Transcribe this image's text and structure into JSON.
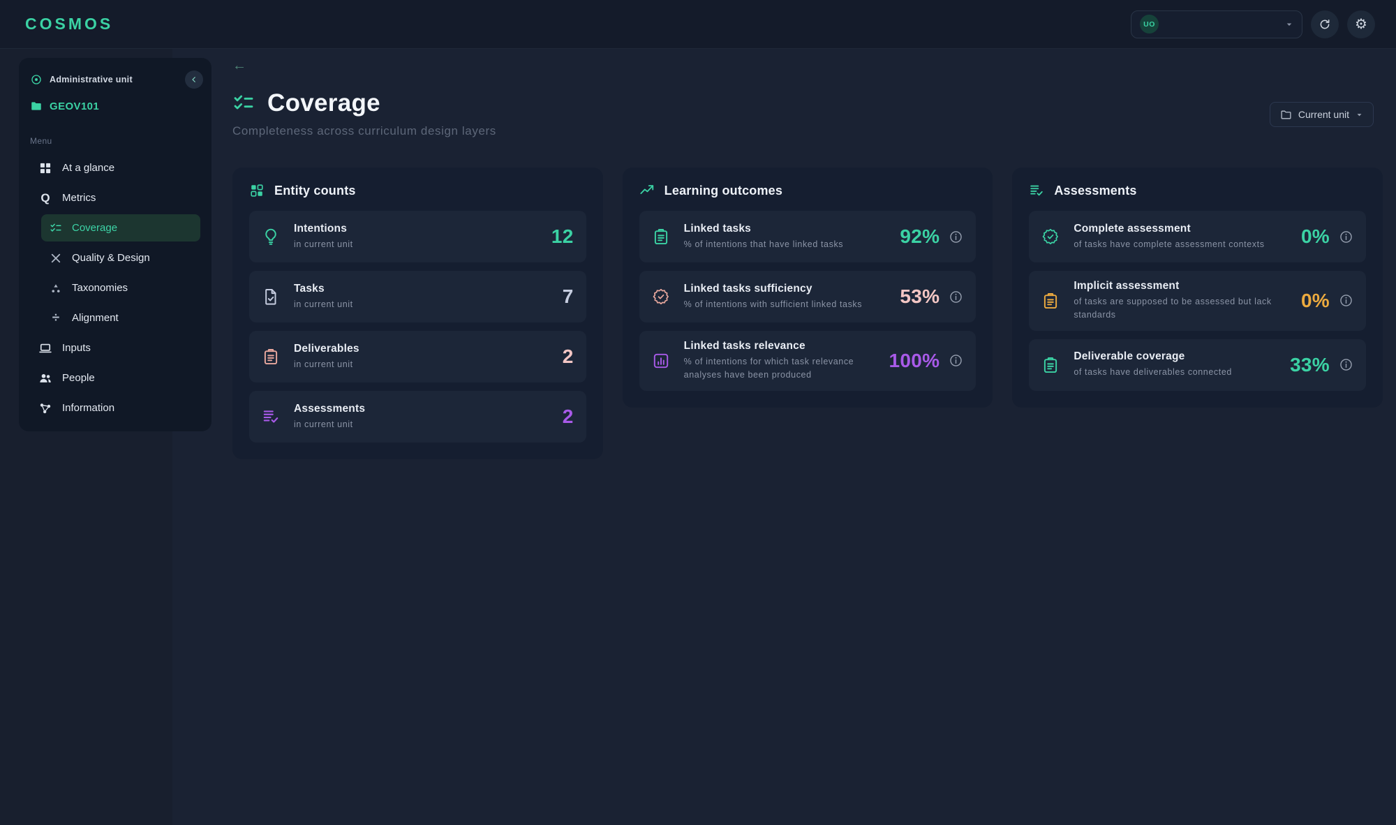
{
  "app": {
    "logo": "COSMOS"
  },
  "topbar": {
    "unit_badge": "UO",
    "actions": [
      "refresh",
      "settings"
    ]
  },
  "colors": {
    "teal": "#3bd2a4",
    "purple": "#a85ae8",
    "rose": "#f3c6c4",
    "salmon": "#e9a89e",
    "orange": "#ecaa3f",
    "slate": "#c6cde0"
  },
  "sidebar": {
    "section_label": "Administrative unit",
    "unit_name": "GEOV101",
    "menu_label": "Menu",
    "items": [
      {
        "label": "At a glance",
        "icon": "grid",
        "sub": false,
        "active": false
      },
      {
        "label": "Metrics",
        "icon": "q",
        "sub": false,
        "active": false
      },
      {
        "label": "Coverage",
        "icon": "checklist",
        "sub": true,
        "active": true
      },
      {
        "label": "Quality & Design",
        "icon": "tools-x",
        "sub": true,
        "active": false
      },
      {
        "label": "Taxonomies",
        "icon": "hierarchy",
        "sub": true,
        "active": false
      },
      {
        "label": "Alignment",
        "icon": "divide",
        "sub": true,
        "active": false
      },
      {
        "label": "Inputs",
        "icon": "laptop",
        "sub": false,
        "active": false
      },
      {
        "label": "People",
        "icon": "people",
        "sub": false,
        "active": false
      },
      {
        "label": "Information",
        "icon": "network",
        "sub": false,
        "active": false
      }
    ]
  },
  "header": {
    "title": "Coverage",
    "subtitle": "Completeness across curriculum design layers",
    "unit_filter_label": "Current unit"
  },
  "cards": [
    {
      "title": "Entity counts",
      "icon": "grid-squares",
      "rows": [
        {
          "title": "Intentions",
          "subtitle": "in current unit",
          "value": "12",
          "color": "teal",
          "icon": "lightbulb",
          "info": false
        },
        {
          "title": "Tasks",
          "subtitle": "in current unit",
          "value": "7",
          "color": "slate",
          "icon": "file-check",
          "info": false
        },
        {
          "title": "Deliverables",
          "subtitle": "in current unit",
          "value": "2",
          "color": "rose",
          "icon": "clipboard",
          "info": false
        },
        {
          "title": "Assessments",
          "subtitle": "in current unit",
          "value": "2",
          "color": "purple",
          "icon": "list-check",
          "info": false
        }
      ]
    },
    {
      "title": "Learning outcomes",
      "icon": "trend-up",
      "rows": [
        {
          "title": "Linked tasks",
          "subtitle": "% of intentions that have linked tasks",
          "value": "92%",
          "color": "teal",
          "icon": "clipboard",
          "info": true
        },
        {
          "title": "Linked tasks sufficiency",
          "subtitle": "% of intentions with sufficient linked tasks",
          "value": "53%",
          "color": "rose",
          "icon": "seal-check",
          "info": true
        },
        {
          "title": "Linked tasks relevance",
          "subtitle": "% of intentions for which task relevance analyses have been produced",
          "value": "100%",
          "color": "purple",
          "icon": "chart-square",
          "info": true
        }
      ]
    },
    {
      "title": "Assessments",
      "icon": "list-check",
      "rows": [
        {
          "title": "Complete assessment",
          "subtitle": "of tasks have complete assessment contexts",
          "value": "0%",
          "color": "teal",
          "icon": "seal-check",
          "info": true
        },
        {
          "title": "Implicit assessment",
          "subtitle": "of tasks are supposed to be assessed but lack standards",
          "value": "0%",
          "color": "orange",
          "icon": "clipboard",
          "info": true
        },
        {
          "title": "Deliverable coverage",
          "subtitle": "of tasks have deliverables connected",
          "value": "33%",
          "color": "teal",
          "icon": "clipboard",
          "info": true
        }
      ]
    }
  ]
}
